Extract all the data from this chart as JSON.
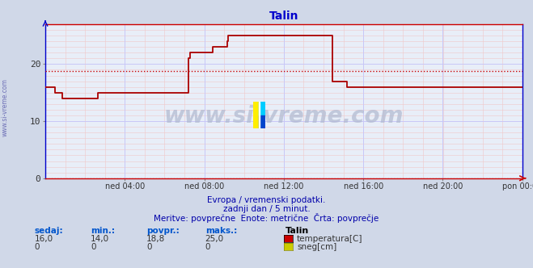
{
  "title": "Talin",
  "bg_color": "#d0d8e8",
  "plot_bg_color": "#e8eef8",
  "grid_color_major": "#c8c8f8",
  "grid_color_minor": "#f0c8c8",
  "line_color": "#aa0000",
  "avg_line_color": "#cc0000",
  "avg_value": 18.8,
  "zero_line_color": "#8888cc",
  "x_tick_labels": [
    "ned 04:00",
    "ned 08:00",
    "ned 12:00",
    "ned 16:00",
    "ned 20:00",
    "pon 00:00"
  ],
  "x_tick_positions": [
    0.1667,
    0.3333,
    0.5,
    0.6667,
    0.8333,
    1.0
  ],
  "y_min": 0,
  "y_max": 27,
  "y_ticks": [
    0,
    10,
    20
  ],
  "watermark": "www.si-vreme.com",
  "subtitle1": "Evropa / vremenski podatki.",
  "subtitle2": "zadnji dan / 5 minut.",
  "subtitle3": "Meritve: povprečne  Enote: metrične  Črta: povprečje",
  "legend_labels": [
    "temperatura[C]",
    "sneg[cm]"
  ],
  "legend_colors": [
    "#cc0000",
    "#cccc00"
  ],
  "stats_headers": [
    "sedaj:",
    "min.:",
    "povpr.:",
    "maks.:"
  ],
  "stats_values_temp": [
    "16,0",
    "14,0",
    "18,8",
    "25,0"
  ],
  "stats_values_snow": [
    "0",
    "0",
    "0",
    "0"
  ],
  "station_name": "Talin",
  "ylabel_text": "www.si-vreme.com",
  "temp_data": [
    16,
    16,
    16,
    16,
    16,
    16,
    16,
    16,
    15,
    15,
    15,
    15,
    15,
    15,
    14,
    14,
    14,
    14,
    14,
    14,
    14,
    14,
    14,
    14,
    14,
    14,
    14,
    14,
    14,
    14,
    14,
    14,
    14,
    14,
    14,
    14,
    14,
    14,
    14,
    14,
    14,
    14,
    14,
    14,
    15,
    15,
    15,
    15,
    15,
    15,
    15,
    15,
    15,
    15,
    15,
    15,
    15,
    15,
    15,
    15,
    15,
    15,
    15,
    15,
    15,
    15,
    15,
    15,
    15,
    15,
    15,
    15,
    15,
    15,
    15,
    15,
    15,
    15,
    15,
    15,
    15,
    15,
    15,
    15,
    15,
    15,
    15,
    15,
    15,
    15,
    15,
    15,
    15,
    15,
    15,
    15,
    15,
    15,
    15,
    15,
    15,
    15,
    15,
    15,
    15,
    15,
    15,
    15,
    15,
    15,
    15,
    15,
    15,
    15,
    15,
    15,
    15,
    15,
    15,
    15,
    21,
    22,
    22,
    22,
    22,
    22,
    22,
    22,
    22,
    22,
    22,
    22,
    22,
    22,
    22,
    22,
    22,
    22,
    22,
    22,
    23,
    23,
    23,
    23,
    23,
    23,
    23,
    23,
    23,
    23,
    23,
    23,
    24,
    25,
    25,
    25,
    25,
    25,
    25,
    25,
    25,
    25,
    25,
    25,
    25,
    25,
    25,
    25,
    25,
    25,
    25,
    25,
    25,
    25,
    25,
    25,
    25,
    25,
    25,
    25,
    25,
    25,
    25,
    25,
    25,
    25,
    25,
    25,
    25,
    25,
    25,
    25,
    25,
    25,
    25,
    25,
    25,
    25,
    25,
    25,
    25,
    25,
    25,
    25,
    25,
    25,
    25,
    25,
    25,
    25,
    25,
    25,
    25,
    25,
    25,
    25,
    25,
    25,
    25,
    25,
    25,
    25,
    25,
    25,
    25,
    25,
    25,
    25,
    25,
    25,
    25,
    25,
    25,
    25,
    25,
    25,
    25,
    25,
    25,
    25,
    17,
    17,
    17,
    17,
    17,
    17,
    17,
    17,
    17,
    17,
    17,
    17,
    16,
    16,
    16,
    16,
    16,
    16,
    16,
    16,
    16,
    16,
    16,
    16,
    16,
    16,
    16,
    16,
    16,
    16,
    16,
    16,
    16,
    16,
    16,
    16,
    16,
    16,
    16,
    16,
    16,
    16,
    16,
    16,
    16,
    16,
    16,
    16,
    16,
    16,
    16,
    16,
    16,
    16,
    16,
    16,
    16,
    16,
    16,
    16,
    16,
    16,
    16,
    16,
    16,
    16,
    16,
    16,
    16,
    16,
    16,
    16,
    16,
    16,
    16,
    16,
    16,
    16,
    16,
    16,
    16,
    16,
    16,
    16,
    16,
    16,
    16,
    16,
    16,
    16,
    16,
    16,
    16,
    16,
    16,
    16,
    16,
    16,
    16,
    16,
    16,
    16,
    16,
    16,
    16,
    16,
    16,
    16,
    16,
    16,
    16,
    16,
    16,
    16,
    16,
    16,
    16,
    16,
    16,
    16,
    16,
    16,
    16,
    16,
    16,
    16,
    16,
    16,
    16,
    16,
    16,
    16,
    16,
    16,
    16,
    16,
    16,
    16,
    16,
    16,
    16,
    16,
    16,
    16,
    16,
    16,
    16,
    16,
    16,
    16,
    16,
    16,
    16,
    16,
    16,
    16,
    16,
    16,
    16,
    16
  ]
}
